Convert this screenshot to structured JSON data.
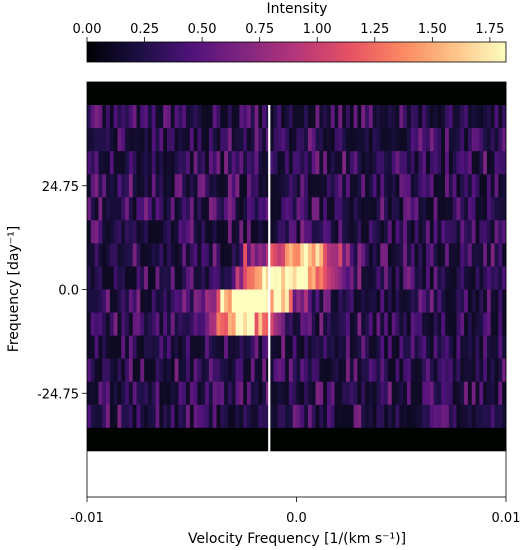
{
  "chart_data": {
    "type": "heatmap",
    "title": "",
    "xlabel": "Velocity Frequency [1/(km s⁻¹)]",
    "ylabel": "Frequency [day⁻¹]",
    "xlim": [
      -0.01,
      0.01
    ],
    "ylim": [
      -49.5,
      49.5
    ],
    "x_ticks": [
      -0.01,
      0.0,
      0.01
    ],
    "x_tick_labels": [
      "-0.01",
      "0.0",
      "0.01"
    ],
    "y_ticks": [
      24.75,
      0.0,
      -24.75
    ],
    "y_tick_labels": [
      "24.75",
      "0.0",
      "-24.75"
    ],
    "colormap": "magma",
    "colorbar": {
      "label": "Intensity",
      "location": "top",
      "range": [
        0.0,
        1.82
      ],
      "ticks": [
        0.0,
        0.25,
        0.5,
        0.75,
        1.0,
        1.25,
        1.5,
        1.75
      ],
      "tick_labels": [
        "0.00",
        "0.25",
        "0.50",
        "0.75",
        "1.00",
        "1.25",
        "1.50",
        "1.75"
      ]
    },
    "n_rows": 16,
    "row_height_day": 5.5,
    "n_columns": 110,
    "vertical_line": {
      "x": -0.0013,
      "color": "#ffffff"
    },
    "background_rows_value": 0.0,
    "peaks": [
      {
        "x": -0.0013,
        "y": 0.0,
        "intensity": 1.82
      },
      {
        "x": 0.0002,
        "y": 5.5,
        "intensity": 1.6
      },
      {
        "x": -0.0025,
        "y": -5.5,
        "intensity": 1.6
      },
      {
        "x": -0.0032,
        "y": -5.5,
        "intensity": 1.3
      },
      {
        "x": 0.0012,
        "y": 5.5,
        "intensity": 1.2
      }
    ],
    "grid": false
  }
}
